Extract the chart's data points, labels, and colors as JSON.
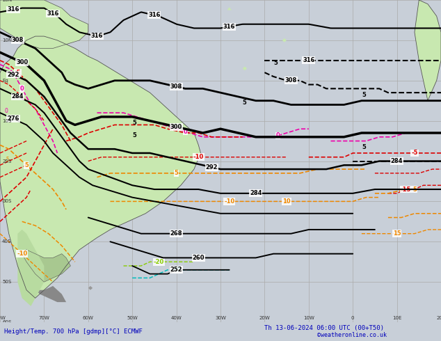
{
  "title_left": "Height/Temp. 700 hPa [gdmp][°C] ECMWF",
  "title_right": "Th 13-06-2024 06:00 UTC (00+T50)",
  "copyright": "©weatheronline.co.uk",
  "bg_ocean": "#c8cfd8",
  "bg_land": "#b8dba0",
  "bg_land2": "#c8e8b0",
  "grid_color": "#aaaaaa",
  "text_color": "#0000bb",
  "fig_bg": "#c8cfd8",
  "bottom_bar": "#d8d8d8",
  "lon_min": -80,
  "lon_max": 20,
  "lat_min": -60,
  "lat_max": 20
}
